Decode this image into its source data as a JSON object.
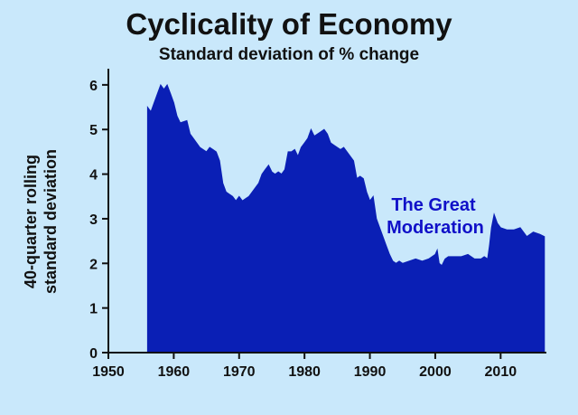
{
  "chart_data": {
    "type": "area",
    "title": "Cyclicality of Economy",
    "subtitle": "Standard deviation of % change",
    "ylabel_line1": "40-quarter rolling",
    "ylabel_line2": "standard deviation",
    "xlabel": "",
    "xlim": [
      1950,
      2017
    ],
    "ylim": [
      0,
      6.2
    ],
    "x_ticks": [
      1950,
      1960,
      1970,
      1980,
      1990,
      2000,
      2010
    ],
    "x_tick_labels": [
      "1950",
      "1960",
      "1970",
      "1980",
      "1990",
      "2000",
      "2010"
    ],
    "y_ticks": [
      0,
      1,
      2,
      3,
      4,
      5,
      6
    ],
    "y_tick_labels": [
      "0",
      "1",
      "2",
      "3",
      "4",
      "5",
      "6"
    ],
    "fill_color": "#0a1fb5",
    "annotation_line1": "The Great",
    "annotation_line2": "Moderation",
    "annotation_color": "#1010c8",
    "series": [
      {
        "x": [
          1956.0,
          1956.5,
          1957.0,
          1957.5,
          1958.0,
          1958.5,
          1959.0,
          1959.5,
          1960.0,
          1960.5,
          1961.0,
          1962.0,
          1962.5,
          1963.0,
          1963.5,
          1964.0,
          1965.0,
          1965.5,
          1966.0,
          1966.5,
          1967.0,
          1967.5,
          1968.0,
          1969.0,
          1969.5,
          1970.0,
          1970.5,
          1971.0,
          1971.5,
          1972.0,
          1973.0,
          1973.5,
          1974.0,
          1974.5,
          1975.0,
          1975.5,
          1976.0,
          1976.5,
          1977.0,
          1977.5,
          1978.0,
          1978.5,
          1979.0,
          1979.5,
          1980.0,
          1980.5,
          1981.0,
          1981.5,
          1982.0,
          1982.5,
          1983.0,
          1983.5,
          1984.0,
          1984.5,
          1985.0,
          1985.5,
          1986.0,
          1986.5,
          1987.0,
          1987.5,
          1988.0,
          1988.5,
          1989.0,
          1989.5,
          1990.0,
          1990.5,
          1991.0,
          1991.5,
          1992.0,
          1992.5,
          1993.0,
          1993.5,
          1994.0,
          1994.5,
          1995.0,
          1996.0,
          1997.0,
          1998.0,
          1999.0,
          2000.0,
          2000.3,
          2000.6,
          2001.0,
          2001.5,
          2002.0,
          2003.0,
          2004.0,
          2005.0,
          2006.0,
          2007.0,
          2007.5,
          2008.0,
          2008.3,
          2008.6,
          2009.0,
          2009.5,
          2010.0,
          2011.0,
          2012.0,
          2013.0,
          2014.0,
          2015.0,
          2016.0,
          2016.7
        ],
        "y": [
          5.5,
          5.4,
          5.6,
          5.8,
          6.0,
          5.9,
          6.0,
          5.8,
          5.6,
          5.3,
          5.15,
          5.2,
          4.9,
          4.8,
          4.7,
          4.6,
          4.5,
          4.6,
          4.55,
          4.5,
          4.3,
          3.8,
          3.6,
          3.5,
          3.4,
          3.5,
          3.4,
          3.45,
          3.5,
          3.6,
          3.8,
          4.0,
          4.1,
          4.2,
          4.05,
          4.0,
          4.05,
          4.0,
          4.1,
          4.5,
          4.5,
          4.55,
          4.4,
          4.6,
          4.7,
          4.8,
          5.0,
          4.85,
          4.9,
          4.95,
          5.0,
          4.9,
          4.7,
          4.65,
          4.6,
          4.55,
          4.6,
          4.5,
          4.4,
          4.3,
          3.9,
          3.95,
          3.9,
          3.6,
          3.4,
          3.5,
          3.0,
          2.8,
          2.6,
          2.4,
          2.2,
          2.05,
          2.0,
          2.05,
          2.0,
          2.05,
          2.1,
          2.05,
          2.1,
          2.2,
          2.3,
          2.0,
          1.95,
          2.1,
          2.15,
          2.15,
          2.15,
          2.2,
          2.1,
          2.1,
          2.15,
          2.1,
          2.4,
          2.8,
          3.1,
          2.9,
          2.8,
          2.75,
          2.75,
          2.8,
          2.6,
          2.7,
          2.65,
          2.6
        ]
      }
    ]
  }
}
